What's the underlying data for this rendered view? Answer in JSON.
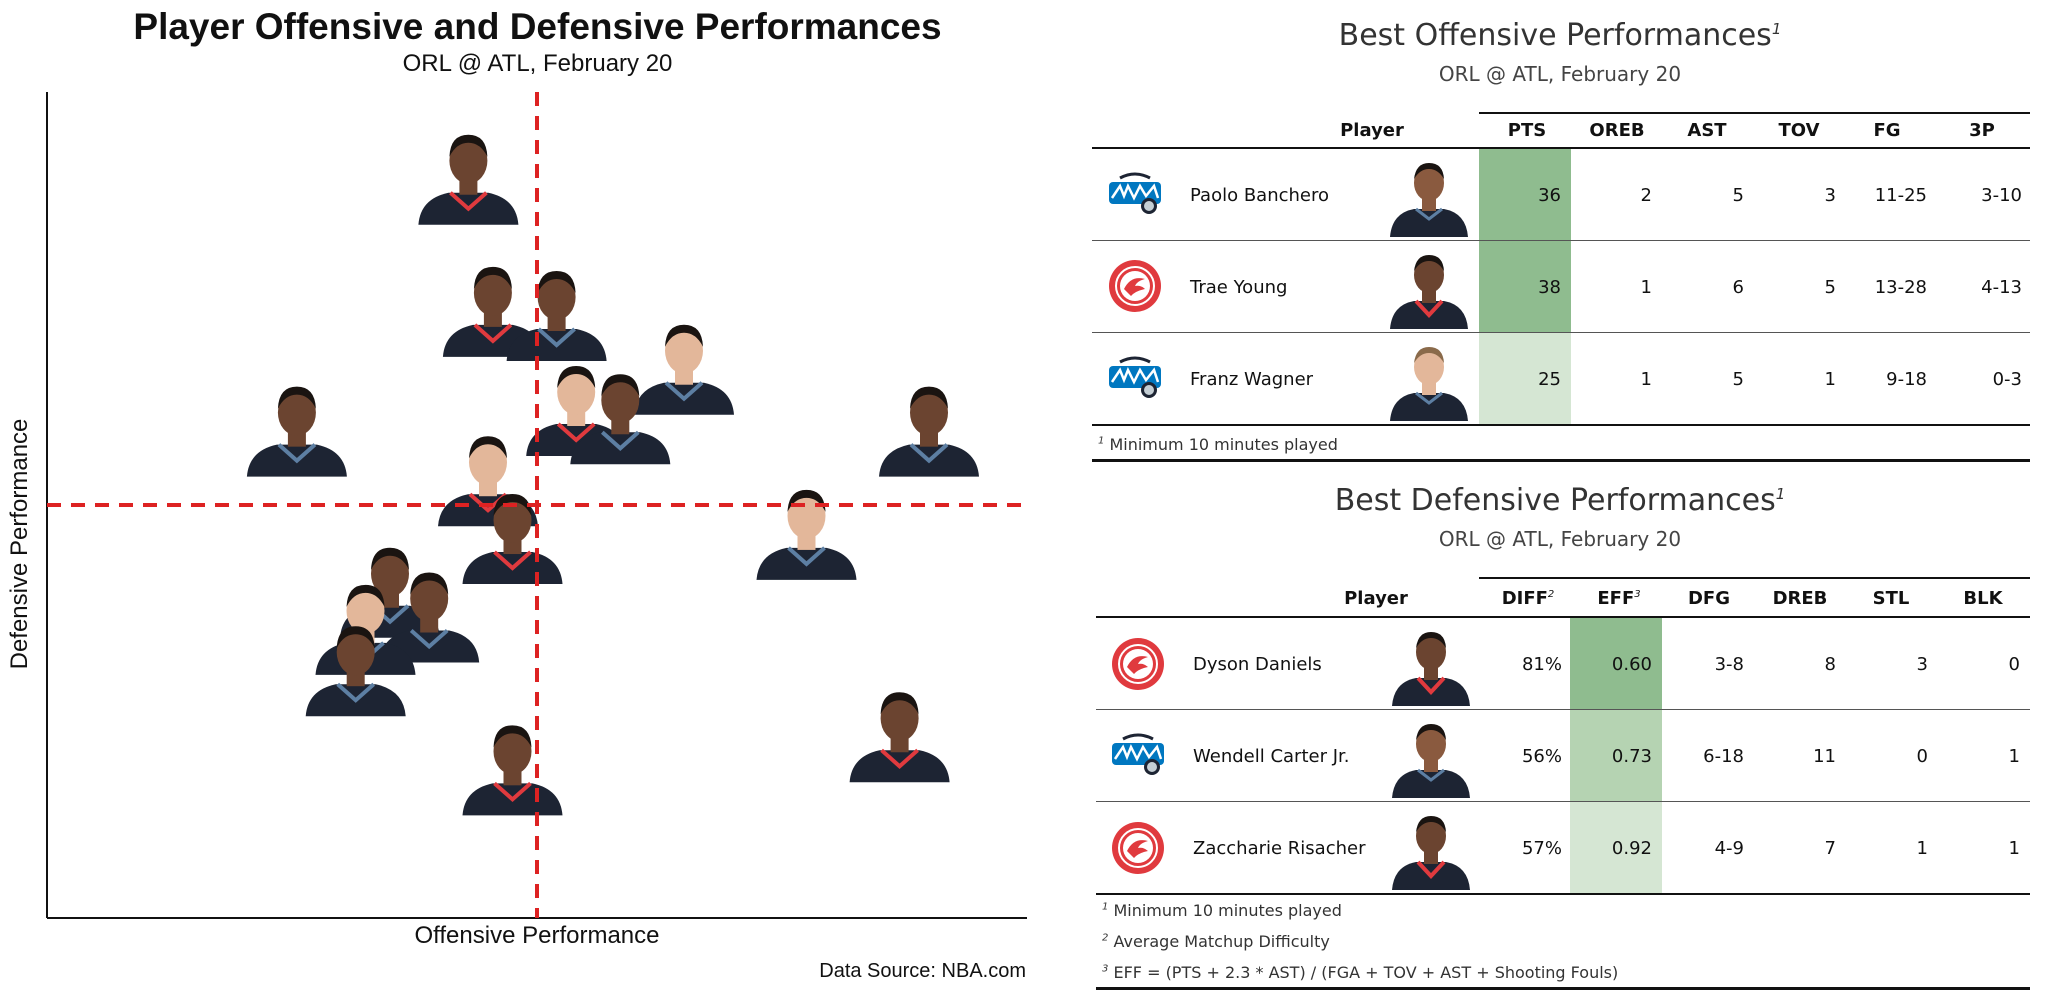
{
  "chart": {
    "title": "Player Offensive and Defensive Performances",
    "subtitle": "ORL @ ATL, February 20",
    "xlabel": "Offensive Performance",
    "ylabel": "Defensive Performance",
    "source": "Data Source: NBA.com"
  },
  "chart_data": {
    "type": "scatter",
    "title": "Player Offensive and Defensive Performances",
    "subtitle": "ORL @ ATL, February 20",
    "xlabel": "Offensive Performance",
    "ylabel": "Defensive Performance",
    "xlim": [
      -1,
      1
    ],
    "ylim": [
      -1,
      1
    ],
    "reference_lines": {
      "x": 0,
      "y": 0,
      "color": "#dd2222",
      "style": "dashed"
    },
    "marker": "player headshot",
    "points": [
      {
        "x": -0.14,
        "y": 0.79,
        "team": "ATL"
      },
      {
        "x": -0.09,
        "y": 0.47,
        "team": "ATL"
      },
      {
        "x": 0.04,
        "y": 0.46,
        "team": "ORL"
      },
      {
        "x": 0.3,
        "y": 0.33,
        "team": "ORL"
      },
      {
        "x": -0.49,
        "y": 0.18,
        "team": "ORL"
      },
      {
        "x": 0.8,
        "y": 0.18,
        "team": "ORL"
      },
      {
        "x": 0.08,
        "y": 0.23,
        "team": "ATL"
      },
      {
        "x": 0.17,
        "y": 0.21,
        "team": "ORL"
      },
      {
        "x": -0.1,
        "y": 0.06,
        "team": "ATL"
      },
      {
        "x": -0.05,
        "y": -0.08,
        "team": "ATL"
      },
      {
        "x": 0.55,
        "y": -0.07,
        "team": "ORL"
      },
      {
        "x": -0.3,
        "y": -0.21,
        "team": "ORL"
      },
      {
        "x": -0.22,
        "y": -0.27,
        "team": "ORL"
      },
      {
        "x": -0.35,
        "y": -0.3,
        "team": "ORL"
      },
      {
        "x": -0.37,
        "y": -0.4,
        "team": "ORL"
      },
      {
        "x": -0.05,
        "y": -0.64,
        "team": "ATL"
      },
      {
        "x": 0.74,
        "y": -0.56,
        "team": "ATL"
      }
    ]
  },
  "offense": {
    "title": "Best Offensive Performances",
    "title_sup": "1",
    "subtitle": "ORL @ ATL, February 20",
    "headers": [
      "Player",
      "PTS",
      "OREB",
      "AST",
      "TOV",
      "FG",
      "3P"
    ],
    "rows": [
      {
        "team": "ORL",
        "player": "Paolo Banchero",
        "pts": "36",
        "oreb": "2",
        "ast": "5",
        "tov": "3",
        "fg": "11-25",
        "tp": "3-10",
        "pts_shade": "#8fbc8f"
      },
      {
        "team": "ATL",
        "player": "Trae Young",
        "pts": "38",
        "oreb": "1",
        "ast": "6",
        "tov": "5",
        "fg": "13-28",
        "tp": "4-13",
        "pts_shade": "#8fbc8f"
      },
      {
        "team": "ORL",
        "player": "Franz Wagner",
        "pts": "25",
        "oreb": "1",
        "ast": "5",
        "tov": "1",
        "fg": "9-18",
        "tp": "0-3",
        "pts_shade": "#d5e6d3"
      }
    ],
    "note_sup": "1",
    "note": "Minimum 10 minutes played"
  },
  "defense": {
    "title": "Best Defensive Performances",
    "title_sup": "1",
    "subtitle": "ORL @ ATL, February 20",
    "headers": [
      "Player",
      "DIFF",
      "EFF",
      "DFG",
      "DREB",
      "STL",
      "BLK"
    ],
    "diff_sup": "2",
    "eff_sup": "3",
    "rows": [
      {
        "team": "ATL",
        "player": "Dyson Daniels",
        "diff": "81%",
        "eff": "0.60",
        "dfg": "3-8",
        "dreb": "8",
        "stl": "3",
        "blk": "0",
        "eff_shade": "#8fbc8f"
      },
      {
        "team": "ORL",
        "player": "Wendell Carter Jr.",
        "diff": "56%",
        "eff": "0.73",
        "dfg": "6-18",
        "dreb": "11",
        "stl": "0",
        "blk": "1",
        "eff_shade": "#b5d3b2"
      },
      {
        "team": "ATL",
        "player": "Zaccharie Risacher",
        "diff": "57%",
        "eff": "0.92",
        "dfg": "4-9",
        "dreb": "7",
        "stl": "1",
        "blk": "1",
        "eff_shade": "#d5e6d3"
      }
    ],
    "notes": [
      {
        "sup": "1",
        "text": "Minimum 10 minutes played"
      },
      {
        "sup": "2",
        "text": "Average Matchup Difficulty"
      },
      {
        "sup": "3",
        "text": "EFF = (PTS + 2.3 * AST) / (FGA + TOV + AST + Shooting Fouls)"
      }
    ]
  },
  "colors": {
    "atl_red": "#e03a3e",
    "orl_blue": "#0077c0",
    "jersey_dark": "#1d2433",
    "skin_dark": "#6b4430",
    "skin_light": "#e3b79a",
    "ref_line": "#dd2222"
  }
}
